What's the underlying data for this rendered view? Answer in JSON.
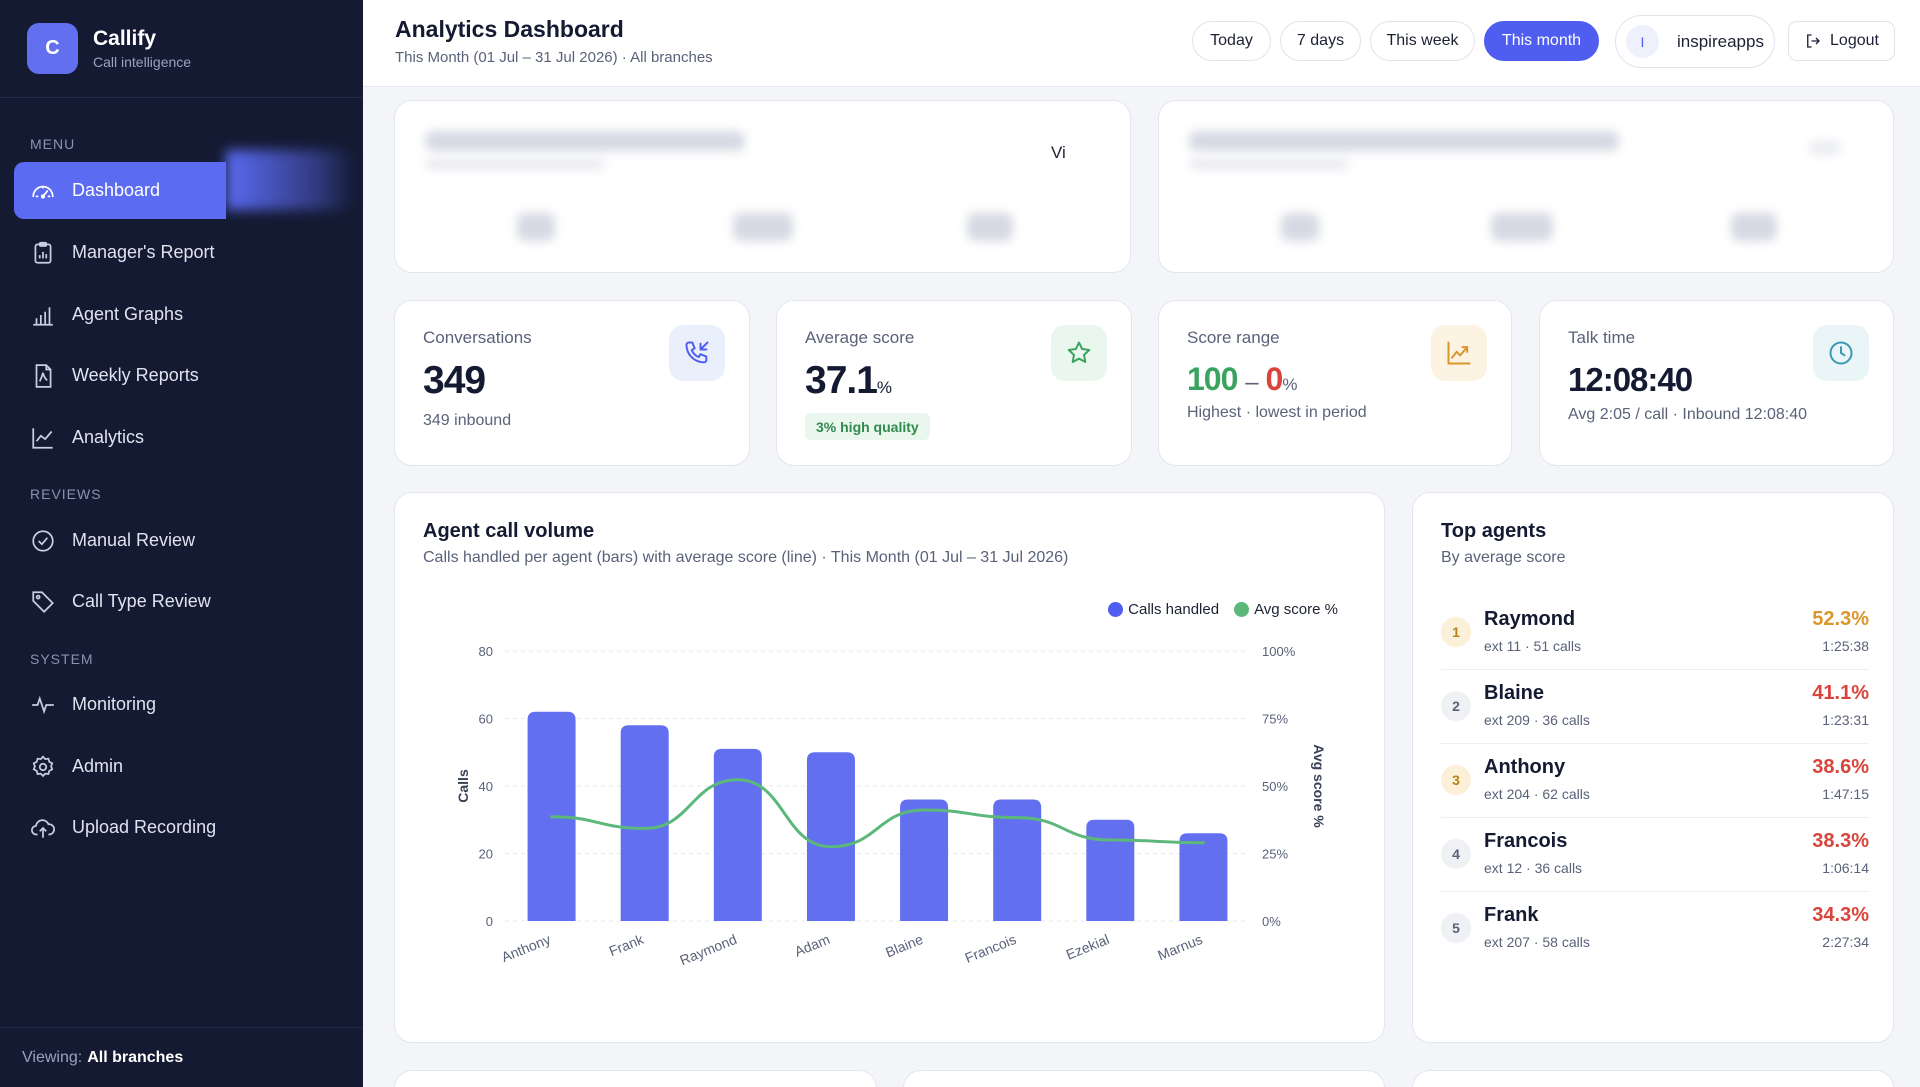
{
  "brand": {
    "logo_letter": "C",
    "name": "Callify",
    "tagline": "Call intelligence"
  },
  "sidebar": {
    "menu_label": "MENU",
    "reviews_label": "REVIEWS",
    "system_label": "SYSTEM",
    "items": [
      {
        "label": "Dashboard",
        "icon": "gauge-icon",
        "active": true
      },
      {
        "label": "Manager's Report",
        "icon": "clipboard-chart-icon"
      },
      {
        "label": "Agent Graphs",
        "icon": "bar-chart-icon"
      },
      {
        "label": "Weekly Reports",
        "icon": "pdf-file-icon"
      },
      {
        "label": "Analytics",
        "icon": "line-chart-icon"
      },
      {
        "label": "Manual Review",
        "icon": "check-circle-icon"
      },
      {
        "label": "Call Type Review",
        "icon": "tag-icon"
      },
      {
        "label": "Monitoring",
        "icon": "pulse-icon"
      },
      {
        "label": "Admin",
        "icon": "gear-icon"
      },
      {
        "label": "Upload Recording",
        "icon": "cloud-upload-icon"
      }
    ],
    "footer_prefix": "Viewing:",
    "footer_value": "All branches"
  },
  "header": {
    "title": "Analytics Dashboard",
    "subtitle": "This Month (01 Jul – 31 Jul 2026) · All branches",
    "ranges": [
      "Today",
      "7 days",
      "This week",
      "This month"
    ],
    "active_range": "This month",
    "user_initial": "I",
    "user_name": "inspireapps",
    "logout_label": "Logout"
  },
  "blurred_card": {
    "partial_text": "Vi"
  },
  "kpis": {
    "conversations": {
      "label": "Conversations",
      "value": "349",
      "sub": "349 inbound"
    },
    "avg_score": {
      "label": "Average score",
      "value": "37.1",
      "unit": "%",
      "badge": "3% high quality"
    },
    "score_range": {
      "label": "Score range",
      "high": "100",
      "dash": "–",
      "low": "0",
      "unit": "%",
      "sub": "Highest · lowest in period"
    },
    "talk_time": {
      "label": "Talk time",
      "value": "12:08:40",
      "sub": "Avg 2:05 / call · Inbound 12:08:40"
    }
  },
  "colors": {
    "accent": "#4f5ef0",
    "bar": "#6270f0",
    "line": "#5cb87a",
    "green": "#3aa35f",
    "red": "#d9453b",
    "gold": "#d9962a"
  },
  "agent_chart": {
    "title": "Agent call volume",
    "subtitle": "Calls handled per agent (bars) with average score (line) · This Month (01 Jul – 31 Jul 2026)",
    "legend_calls": "Calls handled",
    "legend_score": "Avg score %"
  },
  "chart_data": {
    "type": "bar",
    "categories": [
      "Anthony",
      "Frank",
      "Raymond",
      "Adam",
      "Blaine",
      "Francois",
      "Ezekial",
      "Marnus"
    ],
    "series": [
      {
        "name": "Calls handled",
        "type": "bar",
        "axis": "left",
        "values": [
          62,
          58,
          51,
          50,
          36,
          36,
          30,
          26
        ]
      },
      {
        "name": "Avg score %",
        "type": "line",
        "axis": "right",
        "values": [
          38.6,
          34.3,
          52.3,
          27.5,
          41.1,
          38.3,
          30.0,
          29.0
        ]
      }
    ],
    "ylabel": "Calls",
    "y2label": "Avg score %",
    "ylim": [
      0,
      80
    ],
    "y2lim": [
      0,
      100
    ],
    "yticks": [
      "0",
      "20",
      "40",
      "60",
      "80"
    ],
    "y2ticks": [
      "0%",
      "25%",
      "50%",
      "75%",
      "100%"
    ],
    "legend": "top-right",
    "grid": true
  },
  "top_agents": {
    "title": "Top agents",
    "subtitle": "By average score",
    "rows": [
      {
        "rank": "1",
        "name": "Raymond",
        "meta": "ext 11 · 51 calls",
        "score": "52.3%",
        "time": "1:25:38",
        "tone": "gold"
      },
      {
        "rank": "2",
        "name": "Blaine",
        "meta": "ext 209 · 36 calls",
        "score": "41.1%",
        "time": "1:23:31",
        "tone": "red"
      },
      {
        "rank": "3",
        "name": "Anthony",
        "meta": "ext 204 · 62 calls",
        "score": "38.6%",
        "time": "1:47:15",
        "tone": "red"
      },
      {
        "rank": "4",
        "name": "Francois",
        "meta": "ext 12 · 36 calls",
        "score": "38.3%",
        "time": "1:06:14",
        "tone": "red"
      },
      {
        "rank": "5",
        "name": "Frank",
        "meta": "ext 207 · 58 calls",
        "score": "34.3%",
        "time": "2:27:34",
        "tone": "red"
      }
    ]
  }
}
